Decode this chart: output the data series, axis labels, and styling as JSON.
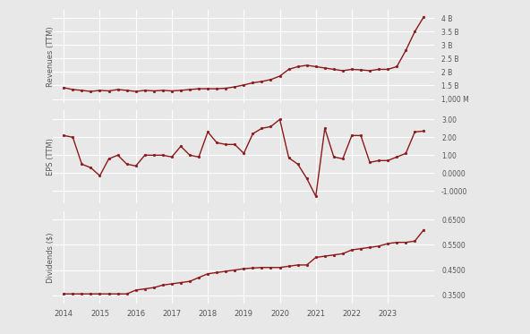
{
  "revenue": {
    "dates": [
      2014.0,
      2014.25,
      2014.5,
      2014.75,
      2015.0,
      2015.25,
      2015.5,
      2015.75,
      2016.0,
      2016.25,
      2016.5,
      2016.75,
      2017.0,
      2017.25,
      2017.5,
      2017.75,
      2018.0,
      2018.25,
      2018.5,
      2018.75,
      2019.0,
      2019.25,
      2019.5,
      2019.75,
      2020.0,
      2020.25,
      2020.5,
      2020.75,
      2021.0,
      2021.25,
      2021.5,
      2021.75,
      2022.0,
      2022.25,
      2022.5,
      2022.75,
      2023.0,
      2023.25,
      2023.5,
      2023.75,
      2024.0
    ],
    "values": [
      1420000000.0,
      1350000000.0,
      1320000000.0,
      1280000000.0,
      1320000000.0,
      1300000000.0,
      1350000000.0,
      1320000000.0,
      1280000000.0,
      1320000000.0,
      1300000000.0,
      1320000000.0,
      1300000000.0,
      1320000000.0,
      1350000000.0,
      1380000000.0,
      1380000000.0,
      1380000000.0,
      1400000000.0,
      1450000000.0,
      1520000000.0,
      1600000000.0,
      1650000000.0,
      1720000000.0,
      1850000000.0,
      2100000000.0,
      2200000000.0,
      2250000000.0,
      2200000000.0,
      2150000000.0,
      2100000000.0,
      2050000000.0,
      2100000000.0,
      2080000000.0,
      2050000000.0,
      2100000000.0,
      2100000000.0,
      2200000000.0,
      2800000000.0,
      3500000000.0,
      4050000000.0
    ],
    "ylabel": "Revenues (TTM)",
    "yticks": [
      1000000000.0,
      1500000000.0,
      2000000000.0,
      2500000000.0,
      3000000000.0,
      3500000000.0,
      4000000000.0
    ],
    "yticklabels": [
      "1,000 M",
      "1.5 B",
      "2 B",
      "2.5 B",
      "3 B",
      "3.5 B",
      "4 B"
    ],
    "ylim": [
      850000000.0,
      4300000000.0
    ]
  },
  "eps": {
    "dates": [
      2014.0,
      2014.25,
      2014.5,
      2014.75,
      2015.0,
      2015.25,
      2015.5,
      2015.75,
      2016.0,
      2016.25,
      2016.5,
      2016.75,
      2017.0,
      2017.25,
      2017.5,
      2017.75,
      2018.0,
      2018.25,
      2018.5,
      2018.75,
      2019.0,
      2019.25,
      2019.5,
      2019.75,
      2020.0,
      2020.25,
      2020.5,
      2020.75,
      2021.0,
      2021.25,
      2021.5,
      2021.75,
      2022.0,
      2022.25,
      2022.5,
      2022.75,
      2023.0,
      2023.25,
      2023.5,
      2023.75,
      2024.0
    ],
    "values": [
      2.1,
      2.0,
      0.5,
      0.3,
      -0.15,
      0.8,
      1.0,
      0.5,
      0.4,
      1.0,
      1.0,
      1.0,
      0.9,
      1.5,
      1.0,
      0.9,
      2.3,
      1.7,
      1.6,
      1.6,
      1.1,
      2.2,
      2.5,
      2.6,
      3.0,
      0.85,
      0.5,
      -0.3,
      -1.3,
      2.5,
      0.9,
      0.8,
      2.1,
      2.1,
      0.6,
      0.7,
      0.7,
      0.9,
      1.1,
      2.3,
      2.35
    ],
    "ylabel": "EPS (TTM)",
    "yticks": [
      -1.0,
      0.0,
      1.0,
      2.0,
      3.0
    ],
    "yticklabels": [
      "-1.0000",
      "0.0000",
      "1.00",
      "2.00",
      "3.00"
    ],
    "ylim": [
      -1.7,
      3.5
    ]
  },
  "dividends": {
    "dates": [
      2014.0,
      2014.25,
      2014.5,
      2014.75,
      2015.0,
      2015.25,
      2015.5,
      2015.75,
      2016.0,
      2016.25,
      2016.5,
      2016.75,
      2017.0,
      2017.25,
      2017.5,
      2017.75,
      2018.0,
      2018.25,
      2018.5,
      2018.75,
      2019.0,
      2019.25,
      2019.5,
      2019.75,
      2020.0,
      2020.25,
      2020.5,
      2020.75,
      2021.0,
      2021.25,
      2021.5,
      2021.75,
      2022.0,
      2022.25,
      2022.5,
      2022.75,
      2023.0,
      2023.25,
      2023.5,
      2023.75,
      2024.0
    ],
    "values": [
      0.355,
      0.355,
      0.355,
      0.355,
      0.355,
      0.355,
      0.355,
      0.355,
      0.37,
      0.375,
      0.38,
      0.39,
      0.395,
      0.4,
      0.405,
      0.42,
      0.435,
      0.44,
      0.445,
      0.45,
      0.455,
      0.458,
      0.46,
      0.46,
      0.46,
      0.465,
      0.47,
      0.47,
      0.5,
      0.505,
      0.51,
      0.515,
      0.53,
      0.535,
      0.54,
      0.545,
      0.555,
      0.56,
      0.56,
      0.565,
      0.61
    ],
    "ylabel": "Dividends ($)",
    "yticks": [
      0.35,
      0.45,
      0.55,
      0.65
    ],
    "yticklabels": [
      "0.3500",
      "0.4500",
      "0.5500",
      "0.6500"
    ],
    "ylim": [
      0.315,
      0.685
    ]
  },
  "line_color": "#8B1A1A",
  "marker": "o",
  "marker_size": 2.0,
  "line_width": 1.0,
  "bg_color": "#e8e8e8",
  "plot_bg_color": "#e8e8e8",
  "grid_color": "#ffffff",
  "xlabel_ticks": [
    2014,
    2015,
    2016,
    2017,
    2018,
    2019,
    2020,
    2021,
    2022,
    2023
  ],
  "xlim": [
    2013.7,
    2024.3
  ]
}
